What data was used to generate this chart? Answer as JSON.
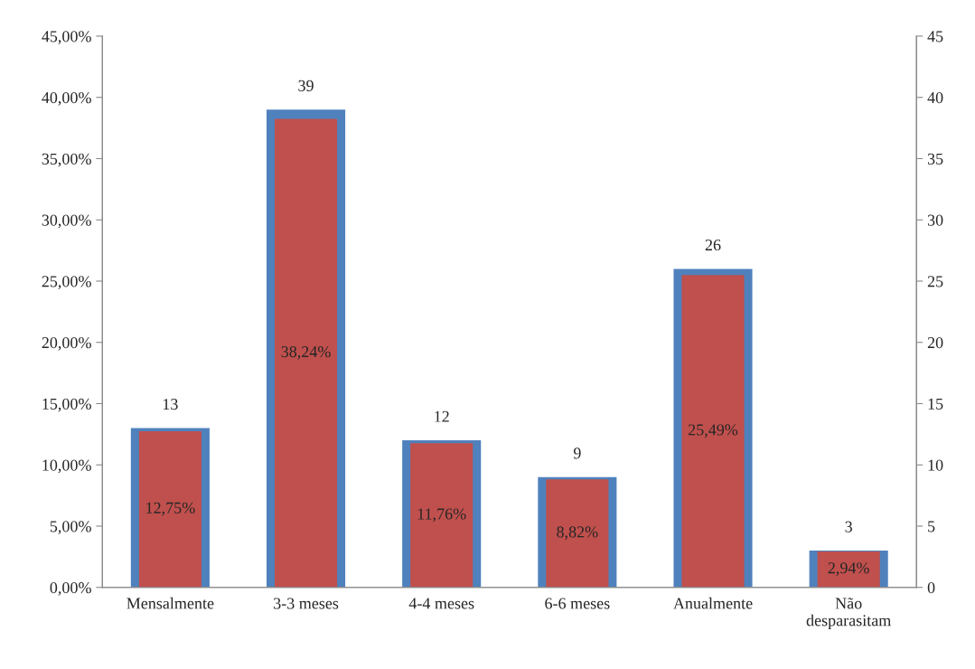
{
  "chart_data": {
    "type": "bar",
    "categories": [
      "Mensalmente",
      "3-3 meses",
      "4-4 meses",
      "6-6 meses",
      "Anualmente",
      "Não\ndesparasitam"
    ],
    "series": [
      {
        "axis": "y2",
        "color": "#4f81bd",
        "values": [
          13,
          39,
          12,
          9,
          26,
          3
        ],
        "value_labels": [
          "13",
          "39",
          "12",
          "9",
          "26",
          "3"
        ]
      },
      {
        "axis": "y",
        "color": "#c0504d",
        "values": [
          12.75,
          38.24,
          11.76,
          8.82,
          25.49,
          2.94
        ],
        "value_labels": [
          "12,75%",
          "38,24%",
          "11,76%",
          "8,82%",
          "25,49%",
          "2,94%"
        ]
      }
    ],
    "ylim": [
      0,
      45
    ],
    "yticks": [
      {
        "value": 0,
        "label": "0,00%"
      },
      {
        "value": 5,
        "label": "5,00%"
      },
      {
        "value": 10,
        "label": "10,00%"
      },
      {
        "value": 15,
        "label": "15,00%"
      },
      {
        "value": 20,
        "label": "20,00%"
      },
      {
        "value": 25,
        "label": "25,00%"
      },
      {
        "value": 30,
        "label": "30,00%"
      },
      {
        "value": 35,
        "label": "35,00%"
      },
      {
        "value": 40,
        "label": "40,00%"
      },
      {
        "value": 45,
        "label": "45,00%"
      }
    ],
    "y2lim": [
      0,
      45
    ],
    "y2ticks": [
      0,
      5,
      10,
      15,
      20,
      25,
      30,
      35,
      40,
      45
    ],
    "grid": false,
    "legend": false
  }
}
